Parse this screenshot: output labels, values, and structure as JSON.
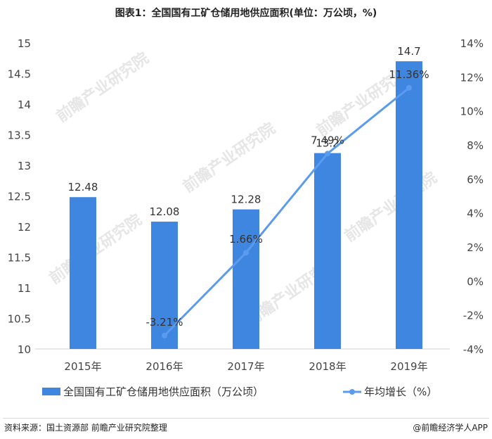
{
  "title": "图表1：全国国有工矿仓储用地供应面积(单位：万公顷，%)",
  "footer": {
    "source": "资料来源：国土资源部 前瞻产业研究院整理",
    "brand": "@前瞻经济学人APP"
  },
  "watermark": "前瞻产业研究院",
  "chart_data": {
    "type": "bar",
    "categories": [
      "2015年",
      "2016年",
      "2017年",
      "2018年",
      "2019年"
    ],
    "series": [
      {
        "name": "全国国有工矿仓储用地供应面积（万公顷）",
        "type": "bar",
        "axis": "left",
        "values": [
          12.48,
          12.08,
          12.28,
          13.2,
          14.7
        ],
        "labels": [
          "12.48",
          "12.08",
          "12.28",
          "13.2",
          "14.7"
        ],
        "color": "#3f86e0"
      },
      {
        "name": "年均增长（%）",
        "type": "line",
        "axis": "right",
        "values": [
          null,
          -3.21,
          1.66,
          7.49,
          11.36
        ],
        "labels": [
          "",
          "-3.21%",
          "1.66%",
          "7.49%",
          "11.36%"
        ],
        "color": "#5b9bef"
      }
    ],
    "y_left": {
      "min": 10,
      "max": 15,
      "ticks": [
        "10",
        "10.5",
        "11",
        "11.5",
        "12",
        "12.5",
        "13",
        "13.5",
        "14",
        "14.5",
        "15"
      ]
    },
    "y_right": {
      "min": -4,
      "max": 14,
      "ticks": [
        "-4%",
        "-2%",
        "0%",
        "2%",
        "4%",
        "6%",
        "8%",
        "10%",
        "12%",
        "14%"
      ]
    },
    "legend_position": "bottom",
    "grid": false
  }
}
